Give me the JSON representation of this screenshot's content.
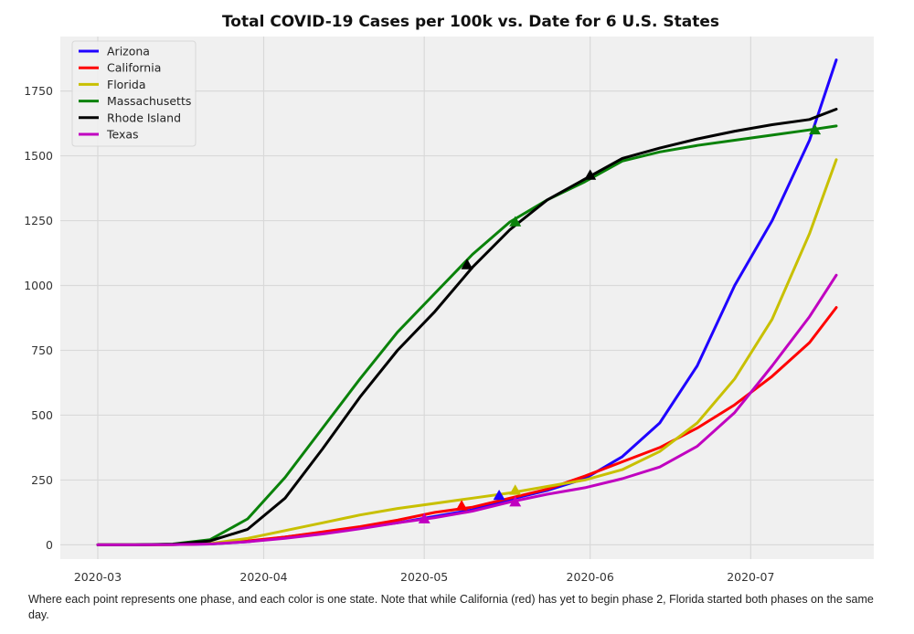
{
  "chart_data": {
    "type": "line",
    "title": "Total COVID-19 Cases per 100k vs. Date for 6 U.S. States",
    "xlabel": "",
    "ylabel": "",
    "xlim": [
      "2020-02-23",
      "2020-07-24"
    ],
    "ylim": [
      -55,
      1960
    ],
    "grid": true,
    "legend_position": "top-left",
    "x_ticks": [
      "2020-03",
      "2020-04",
      "2020-05",
      "2020-06",
      "2020-07"
    ],
    "x_tick_dates": [
      "2020-03-01",
      "2020-04-01",
      "2020-05-01",
      "2020-06-01",
      "2020-07-01"
    ],
    "y_ticks": [
      0,
      250,
      500,
      750,
      1000,
      1250,
      1500,
      1750
    ],
    "x": [
      "2020-03-01",
      "2020-03-08",
      "2020-03-15",
      "2020-03-22",
      "2020-03-29",
      "2020-04-05",
      "2020-04-12",
      "2020-04-19",
      "2020-04-26",
      "2020-05-03",
      "2020-05-10",
      "2020-05-17",
      "2020-05-24",
      "2020-05-31",
      "2020-06-07",
      "2020-06-14",
      "2020-06-21",
      "2020-06-28",
      "2020-07-05",
      "2020-07-12",
      "2020-07-17"
    ],
    "series": [
      {
        "name": "Arizona",
        "color": "#1f00ff",
        "values": [
          0,
          0,
          1,
          3,
          12,
          30,
          48,
          65,
          85,
          110,
          135,
          175,
          210,
          255,
          340,
          470,
          690,
          1000,
          1250,
          1560,
          1870
        ]
      },
      {
        "name": "California",
        "color": "#ff0000",
        "values": [
          0,
          0,
          1,
          4,
          15,
          30,
          50,
          70,
          95,
          125,
          145,
          180,
          215,
          265,
          320,
          375,
          450,
          540,
          650,
          780,
          915
        ]
      },
      {
        "name": "Florida",
        "color": "#c8c000",
        "values": [
          0,
          0,
          1,
          5,
          25,
          55,
          85,
          115,
          140,
          160,
          180,
          200,
          225,
          250,
          290,
          360,
          470,
          640,
          870,
          1200,
          1485
        ]
      },
      {
        "name": "Massachusetts",
        "color": "#0a820a",
        "values": [
          0,
          0,
          3,
          20,
          100,
          260,
          450,
          640,
          820,
          970,
          1120,
          1245,
          1330,
          1400,
          1480,
          1515,
          1540,
          1560,
          1580,
          1600,
          1615
        ]
      },
      {
        "name": "Rhode Island",
        "color": "#000000",
        "values": [
          0,
          0,
          2,
          15,
          60,
          180,
          370,
          570,
          750,
          900,
          1070,
          1215,
          1330,
          1410,
          1490,
          1530,
          1565,
          1595,
          1620,
          1640,
          1680
        ]
      },
      {
        "name": "Texas",
        "color": "#c000c0",
        "values": [
          0,
          0,
          1,
          3,
          12,
          25,
          42,
          62,
          85,
          105,
          130,
          165,
          195,
          220,
          255,
          300,
          380,
          510,
          690,
          880,
          1040
        ]
      }
    ],
    "phase_markers": [
      {
        "series": "Arizona",
        "date": "2020-05-15",
        "value": 190
      },
      {
        "series": "California",
        "date": "2020-05-08",
        "value": 150
      },
      {
        "series": "Florida",
        "date": "2020-05-18",
        "value": 210
      },
      {
        "series": "Massachusetts",
        "date": "2020-05-18",
        "value": 1245
      },
      {
        "series": "Massachusetts",
        "date": "2020-07-13",
        "value": 1600
      },
      {
        "series": "Rhode Island",
        "date": "2020-05-09",
        "value": 1080
      },
      {
        "series": "Rhode Island",
        "date": "2020-06-01",
        "value": 1425
      },
      {
        "series": "Texas",
        "date": "2020-05-01",
        "value": 100
      },
      {
        "series": "Texas",
        "date": "2020-05-18",
        "value": 165
      }
    ]
  },
  "caption": "Where each point represents one phase, and each color is one state. Note that while California (red) has yet to begin phase 2, Florida started both phases on the same day."
}
